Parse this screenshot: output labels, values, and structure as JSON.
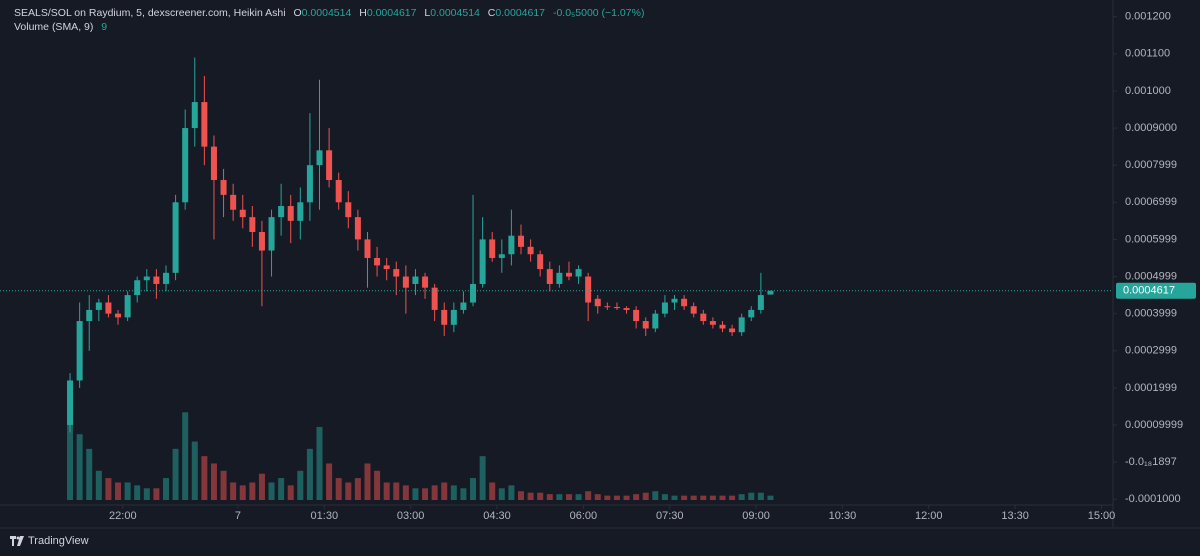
{
  "chart_data": {
    "type": "candlestick",
    "title": "SEALS/SOL on Raydium, 5, dexscreener.com, Heikin Ashi",
    "ohlc_letters": [
      "O",
      "H",
      "L",
      "C"
    ],
    "change_label": "-0.0₅5000 (−1.07%)",
    "volume_label": "Volume (SMA, 9)",
    "volume_value": "9",
    "x": [
      "21:05",
      "21:15",
      "21:25",
      "21:35",
      "21:45",
      "21:55",
      "22:05",
      "22:15",
      "22:25",
      "22:35",
      "22:45",
      "22:55",
      "23:05",
      "23:15",
      "23:25",
      "23:35",
      "23:45",
      "23:55",
      "00:05",
      "00:15",
      "00:25",
      "00:35",
      "00:45",
      "00:55",
      "01:05",
      "01:15",
      "01:25",
      "01:35",
      "01:45",
      "01:55",
      "02:05",
      "02:15",
      "02:25",
      "02:35",
      "02:45",
      "02:55",
      "03:05",
      "03:15",
      "03:25",
      "03:35",
      "03:45",
      "03:55",
      "04:05",
      "04:15",
      "04:25",
      "04:35",
      "04:45",
      "04:55",
      "05:05",
      "05:15",
      "05:25",
      "05:35",
      "05:45",
      "05:55",
      "06:05",
      "06:15",
      "06:25",
      "06:35",
      "06:45",
      "06:55",
      "07:05",
      "07:15",
      "07:25",
      "07:35",
      "07:45",
      "07:55",
      "08:05",
      "08:15",
      "08:25",
      "08:35",
      "08:45",
      "08:55",
      "09:05",
      "09:15"
    ],
    "open": [
      0.0001,
      0.00022,
      0.00038,
      0.00041,
      0.00043,
      0.0004,
      0.00039,
      0.00045,
      0.00049,
      0.0005,
      0.00048,
      0.00051,
      0.0007,
      0.0009,
      0.00097,
      0.00085,
      0.00076,
      0.00072,
      0.00068,
      0.00066,
      0.00062,
      0.00057,
      0.00066,
      0.00069,
      0.00065,
      0.0007,
      0.0008,
      0.00084,
      0.00076,
      0.0007,
      0.00066,
      0.0006,
      0.00055,
      0.00053,
      0.00052,
      0.0005,
      0.00048,
      0.0005,
      0.00047,
      0.00041,
      0.00037,
      0.00041,
      0.00043,
      0.00048,
      0.0006,
      0.00055,
      0.00056,
      0.00061,
      0.00058,
      0.00056,
      0.00052,
      0.00048,
      0.00051,
      0.0005,
      0.0005,
      0.00044,
      0.00042,
      0.000418,
      0.000415,
      0.00041,
      0.00038,
      0.00036,
      0.0004,
      0.00043,
      0.00044,
      0.00042,
      0.0004,
      0.00038,
      0.00037,
      0.00036,
      0.00035,
      0.00039,
      0.00041,
      0.0004514
    ],
    "high": [
      0.00024,
      0.00043,
      0.00045,
      0.00044,
      0.00045,
      0.00041,
      0.00046,
      0.0005,
      0.00052,
      0.00052,
      0.00053,
      0.00072,
      0.00095,
      0.00109,
      0.00104,
      0.00088,
      0.00079,
      0.00075,
      0.00072,
      0.00069,
      0.00065,
      0.00068,
      0.00075,
      0.00072,
      0.00074,
      0.00094,
      0.00103,
      0.0009,
      0.00078,
      0.00073,
      0.00068,
      0.00062,
      0.00058,
      0.00055,
      0.00054,
      0.00053,
      0.00052,
      0.00051,
      0.00048,
      0.00043,
      0.00043,
      0.00046,
      0.00072,
      0.00066,
      0.00062,
      0.0006,
      0.00068,
      0.00064,
      0.0006,
      0.00057,
      0.00054,
      0.00053,
      0.00054,
      0.00053,
      0.00051,
      0.00045,
      0.00043,
      0.00043,
      0.00042,
      0.00042,
      0.00039,
      0.00041,
      0.00045,
      0.00045,
      0.00045,
      0.00043,
      0.00041,
      0.00039,
      0.00038,
      0.00037,
      0.0004,
      0.00042,
      0.00051,
      0.0004617
    ],
    "low": [
      8e-05,
      0.0002,
      0.0003,
      0.00038,
      0.00039,
      0.00037,
      0.00038,
      0.00043,
      0.00046,
      0.00044,
      0.00046,
      0.00049,
      0.00068,
      0.00085,
      0.0008,
      0.0006,
      0.00066,
      0.00065,
      0.00063,
      0.00058,
      0.00042,
      0.0005,
      0.00061,
      0.00059,
      0.0006,
      0.00065,
      0.00068,
      0.00074,
      0.00068,
      0.00063,
      0.00057,
      0.00047,
      0.0005,
      0.00049,
      0.00045,
      0.0004,
      0.00045,
      0.00044,
      0.00038,
      0.00034,
      0.00035,
      0.0004,
      0.00042,
      0.00047,
      0.00054,
      0.00051,
      0.00053,
      0.00056,
      0.00054,
      0.0005,
      0.00046,
      0.00047,
      0.00049,
      0.00048,
      0.00038,
      0.0004,
      0.00041,
      0.00041,
      0.0004,
      0.00036,
      0.00034,
      0.00035,
      0.00039,
      0.00041,
      0.00041,
      0.00039,
      0.00037,
      0.00036,
      0.00035,
      0.00034,
      0.00034,
      0.00038,
      0.0004,
      0.0004514
    ],
    "close": [
      0.00022,
      0.00038,
      0.00041,
      0.00043,
      0.0004,
      0.00039,
      0.00045,
      0.00049,
      0.0005,
      0.00048,
      0.00051,
      0.0007,
      0.0009,
      0.00097,
      0.00085,
      0.00076,
      0.00072,
      0.00068,
      0.00066,
      0.00062,
      0.00057,
      0.00066,
      0.00069,
      0.00065,
      0.0007,
      0.0008,
      0.00084,
      0.00076,
      0.0007,
      0.00066,
      0.0006,
      0.00055,
      0.00053,
      0.00052,
      0.0005,
      0.00047,
      0.0005,
      0.00047,
      0.00041,
      0.00037,
      0.00041,
      0.00043,
      0.00048,
      0.0006,
      0.00055,
      0.00056,
      0.00061,
      0.00058,
      0.00056,
      0.00052,
      0.00048,
      0.00051,
      0.0005,
      0.00052,
      0.00043,
      0.00042,
      0.000418,
      0.000415,
      0.00041,
      0.00038,
      0.00036,
      0.0004,
      0.00043,
      0.00044,
      0.00042,
      0.0004,
      0.00038,
      0.00037,
      0.00036,
      0.00035,
      0.00039,
      0.00041,
      0.00045,
      0.0004617
    ],
    "volume": [
      65,
      45,
      35,
      20,
      15,
      12,
      12,
      10,
      8,
      8,
      15,
      35,
      60,
      40,
      30,
      25,
      20,
      12,
      10,
      12,
      18,
      12,
      15,
      10,
      20,
      35,
      50,
      25,
      15,
      12,
      15,
      25,
      20,
      12,
      12,
      10,
      8,
      8,
      10,
      12,
      10,
      8,
      15,
      30,
      12,
      8,
      10,
      6,
      5,
      5,
      4,
      4,
      4,
      4,
      6,
      4,
      3,
      3,
      3,
      4,
      5,
      6,
      4,
      3,
      3,
      3,
      3,
      3,
      3,
      3,
      4,
      5,
      5,
      3
    ],
    "up_color": "#26a69a",
    "down_color": "#ef5350",
    "xlim": [
      "19:52",
      "15:12"
    ],
    "xticks": [
      "22:00",
      {
        "value": "00:00",
        "label": "7"
      },
      "01:30",
      "03:00",
      "04:30",
      "06:00",
      "07:30",
      "09:00",
      "10:30",
      "12:00",
      "13:30",
      "15:00"
    ],
    "ylim": [
      -0.000129,
      0.001245
    ],
    "yticks": [
      {
        "value": 0.0012,
        "label": "0.001200"
      },
      {
        "value": 0.0011,
        "label": "0.001100"
      },
      {
        "value": 0.001,
        "label": "0.001000"
      },
      {
        "value": 0.0009,
        "label": "0.0009000"
      },
      0.0007999,
      0.0006999,
      0.0005999,
      0.0004999,
      0.0003999,
      0.0002999,
      0.0001999,
      9.999e-05,
      {
        "value": -1.897e-19,
        "label": "-0.0₁₈1897"
      },
      {
        "value": -0.0001,
        "label": "-0.0001000"
      }
    ]
  },
  "footer": {
    "brand": "TradingView"
  }
}
